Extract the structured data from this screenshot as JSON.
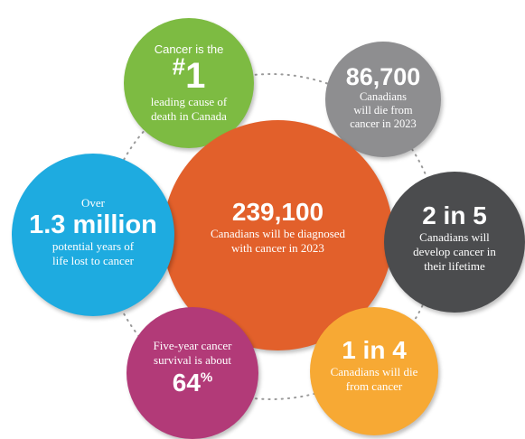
{
  "stats": {
    "rank": {
      "pre": "Cancer is the",
      "hash": "#",
      "number": "1",
      "post_line1": "leading cause of",
      "post_line2": "death in Canada"
    },
    "deaths": {
      "number": "86,700",
      "line1": "Canadians",
      "line2": "will die from",
      "line3": "cancer in 2023"
    },
    "diagnosed": {
      "number": "239,100",
      "line1": "Canadians will be diagnosed",
      "line2": "with cancer in 2023"
    },
    "years_lost": {
      "pre": "Over",
      "number": "1.3 million",
      "line1": "potential years of",
      "line2": "life lost to cancer"
    },
    "lifetime": {
      "number": "2 in 5",
      "line1": "Canadians will",
      "line2": "develop cancer in",
      "line3": "their lifetime"
    },
    "survival": {
      "line1": "Five-year cancer",
      "line2": "survival is about",
      "number": "64",
      "unit": "%"
    },
    "mortality": {
      "number": "1 in 4",
      "line1": "Canadians will die",
      "line2": "from cancer"
    }
  },
  "colors": {
    "green": "#7dbb42",
    "gray": "#8e8e90",
    "orange": "#e2602b",
    "blue": "#1eabe0",
    "dark": "#4b4c4e",
    "pink": "#b23a78",
    "yellow": "#f7a934"
  }
}
